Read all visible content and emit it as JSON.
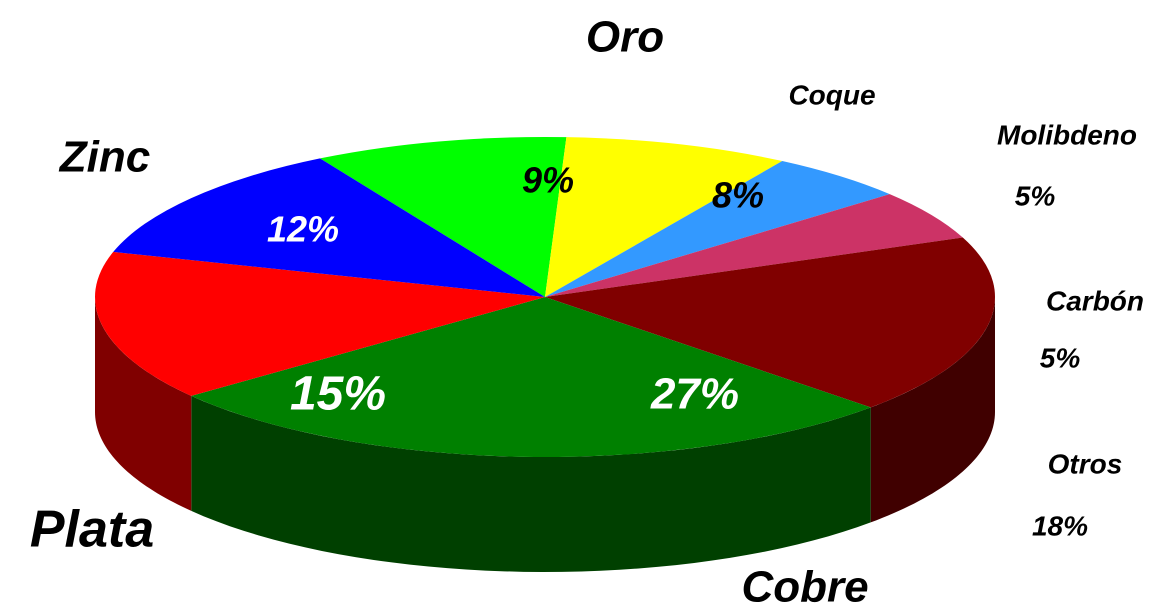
{
  "chart_data": {
    "type": "pie",
    "categories": [
      "Oro",
      "Coque",
      "Molibdeno",
      "Carbón",
      "Otros",
      "Cobre",
      "Plata",
      "Zinc"
    ],
    "values": [
      9,
      8,
      5,
      5,
      18,
      27,
      15,
      12
    ],
    "value_labels": [
      "9%",
      "8%",
      "5%",
      "5%",
      "18%",
      "27%",
      "15%",
      "12%"
    ],
    "colors": [
      "#00ff00",
      "#ffff00",
      "#3399ff",
      "#cc3366",
      "#800000",
      "#008000",
      "#ff0000",
      "#0000ff"
    ]
  }
}
